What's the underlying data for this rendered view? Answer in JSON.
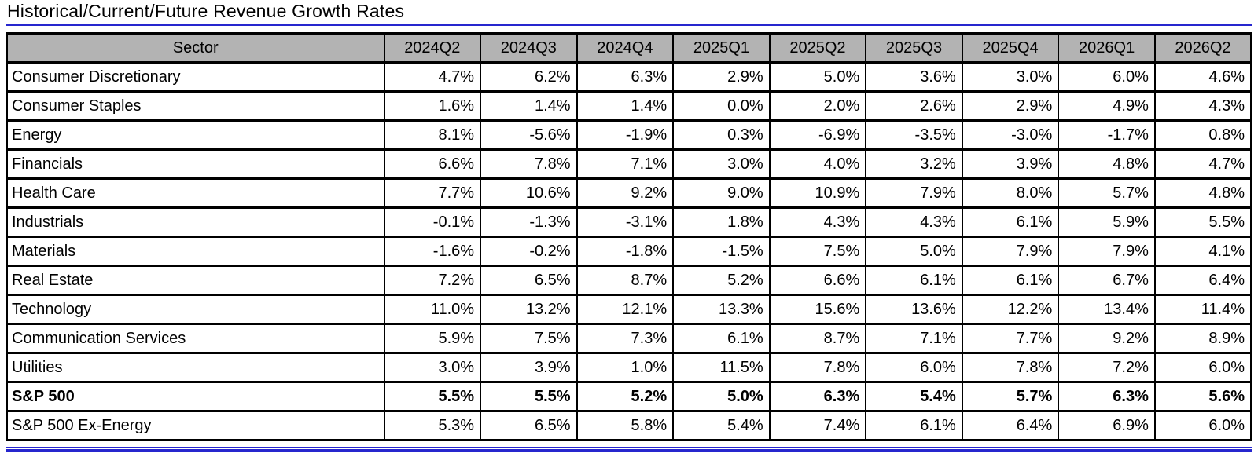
{
  "title": "Historical/Current/Future Revenue Growth Rates",
  "colors": {
    "accent_blue": "#2626CE",
    "header_bg": "#B3B3B3",
    "border_black": "#000000",
    "page_bg": "#FFFFFF"
  },
  "chart_data": {
    "type": "table",
    "title": "Historical/Current/Future Revenue Growth Rates",
    "columns": [
      "Sector",
      "2024Q2",
      "2024Q3",
      "2024Q4",
      "2025Q1",
      "2025Q2",
      "2025Q3",
      "2025Q4",
      "2026Q1",
      "2026Q2"
    ],
    "rows": [
      {
        "sector": "Consumer Discretionary",
        "bold": false,
        "values": [
          "4.7%",
          "6.2%",
          "6.3%",
          "2.9%",
          "5.0%",
          "3.6%",
          "3.0%",
          "6.0%",
          "4.6%"
        ]
      },
      {
        "sector": "Consumer Staples",
        "bold": false,
        "values": [
          "1.6%",
          "1.4%",
          "1.4%",
          "0.0%",
          "2.0%",
          "2.6%",
          "2.9%",
          "4.9%",
          "4.3%"
        ]
      },
      {
        "sector": "Energy",
        "bold": false,
        "values": [
          "8.1%",
          "-5.6%",
          "-1.9%",
          "0.3%",
          "-6.9%",
          "-3.5%",
          "-3.0%",
          "-1.7%",
          "0.8%"
        ]
      },
      {
        "sector": "Financials",
        "bold": false,
        "values": [
          "6.6%",
          "7.8%",
          "7.1%",
          "3.0%",
          "4.0%",
          "3.2%",
          "3.9%",
          "4.8%",
          "4.7%"
        ]
      },
      {
        "sector": "Health Care",
        "bold": false,
        "values": [
          "7.7%",
          "10.6%",
          "9.2%",
          "9.0%",
          "10.9%",
          "7.9%",
          "8.0%",
          "5.7%",
          "4.8%"
        ]
      },
      {
        "sector": "Industrials",
        "bold": false,
        "values": [
          "-0.1%",
          "-1.3%",
          "-3.1%",
          "1.8%",
          "4.3%",
          "4.3%",
          "6.1%",
          "5.9%",
          "5.5%"
        ]
      },
      {
        "sector": "Materials",
        "bold": false,
        "values": [
          "-1.6%",
          "-0.2%",
          "-1.8%",
          "-1.5%",
          "7.5%",
          "5.0%",
          "7.9%",
          "7.9%",
          "4.1%"
        ]
      },
      {
        "sector": "Real Estate",
        "bold": false,
        "values": [
          "7.2%",
          "6.5%",
          "8.7%",
          "5.2%",
          "6.6%",
          "6.1%",
          "6.1%",
          "6.7%",
          "6.4%"
        ]
      },
      {
        "sector": "Technology",
        "bold": false,
        "values": [
          "11.0%",
          "13.2%",
          "12.1%",
          "13.3%",
          "15.6%",
          "13.6%",
          "12.2%",
          "13.4%",
          "11.4%"
        ]
      },
      {
        "sector": "Communication Services",
        "bold": false,
        "values": [
          "5.9%",
          "7.5%",
          "7.3%",
          "6.1%",
          "8.7%",
          "7.1%",
          "7.7%",
          "9.2%",
          "8.9%"
        ]
      },
      {
        "sector": "Utilities",
        "bold": false,
        "values": [
          "3.0%",
          "3.9%",
          "1.0%",
          "11.5%",
          "7.8%",
          "6.0%",
          "7.8%",
          "7.2%",
          "6.0%"
        ]
      },
      {
        "sector": "S&P 500",
        "bold": true,
        "values": [
          "5.5%",
          "5.5%",
          "5.2%",
          "5.0%",
          "6.3%",
          "5.4%",
          "5.7%",
          "6.3%",
          "5.6%"
        ]
      },
      {
        "sector": "S&P 500 Ex-Energy",
        "bold": false,
        "values": [
          "5.3%",
          "6.5%",
          "5.8%",
          "5.4%",
          "7.4%",
          "6.1%",
          "6.4%",
          "6.9%",
          "6.0%"
        ]
      }
    ]
  }
}
